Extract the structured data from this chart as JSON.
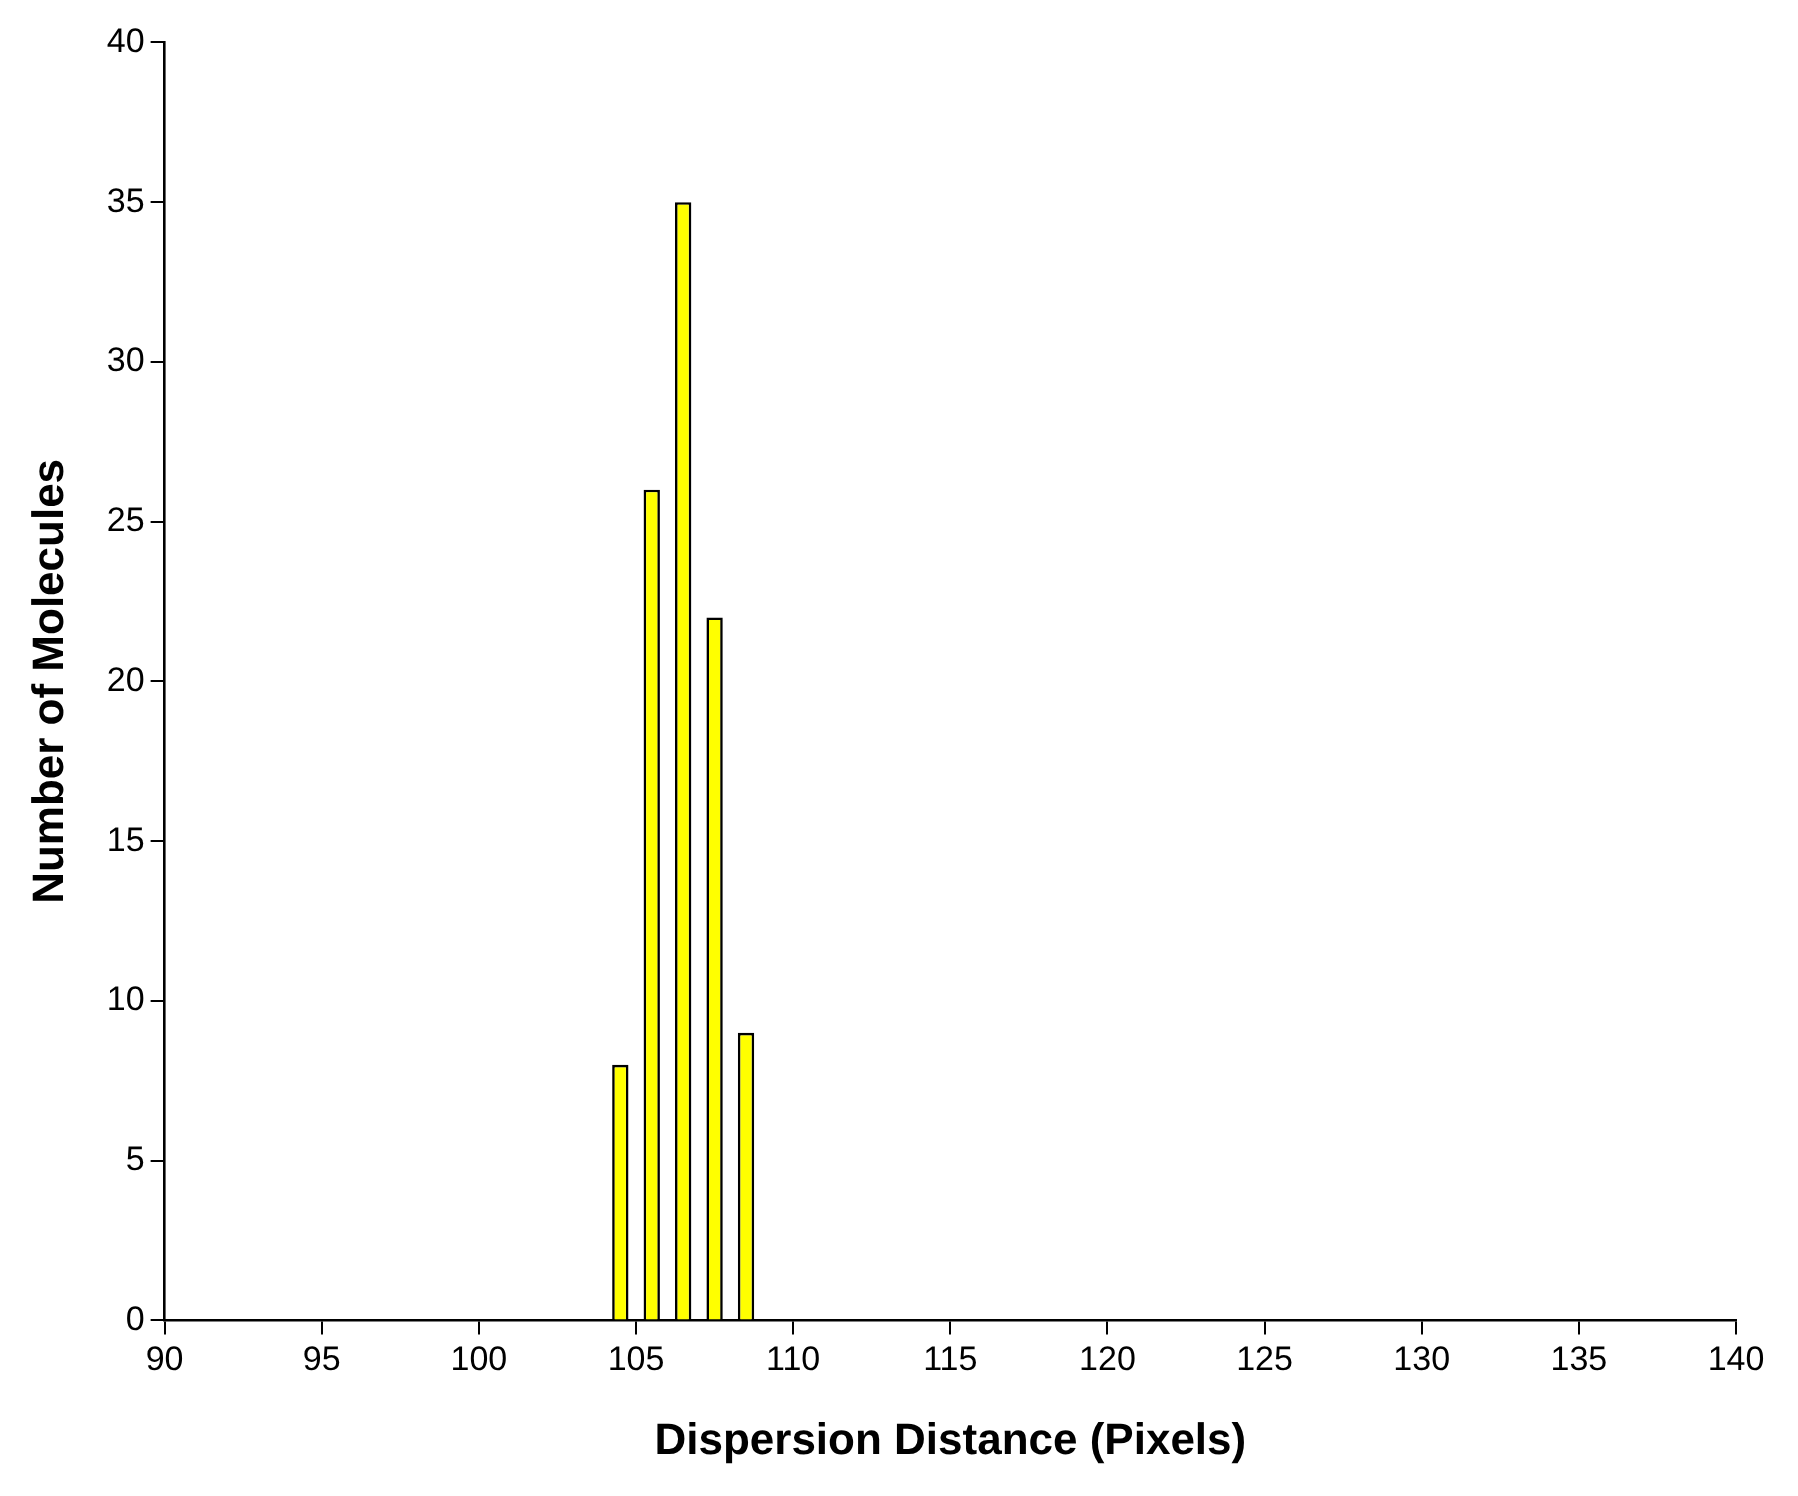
{
  "chart_data": {
    "type": "bar",
    "xlabel": "Dispersion Distance (Pixels)",
    "ylabel": "Number of Molecules",
    "x": [
      104.5,
      105.5,
      106.5,
      107.5,
      108.5
    ],
    "values": [
      8,
      26,
      35,
      22,
      9
    ],
    "color": "#ffff00",
    "xlim": [
      90,
      140
    ],
    "xticks": [
      90,
      95,
      100,
      105,
      110,
      115,
      120,
      125,
      130,
      135,
      140
    ],
    "ylim": [
      0,
      40
    ],
    "yticks": [
      0,
      5,
      10,
      15,
      20,
      25,
      30,
      35,
      40
    ],
    "grid": false,
    "legend": false
  }
}
